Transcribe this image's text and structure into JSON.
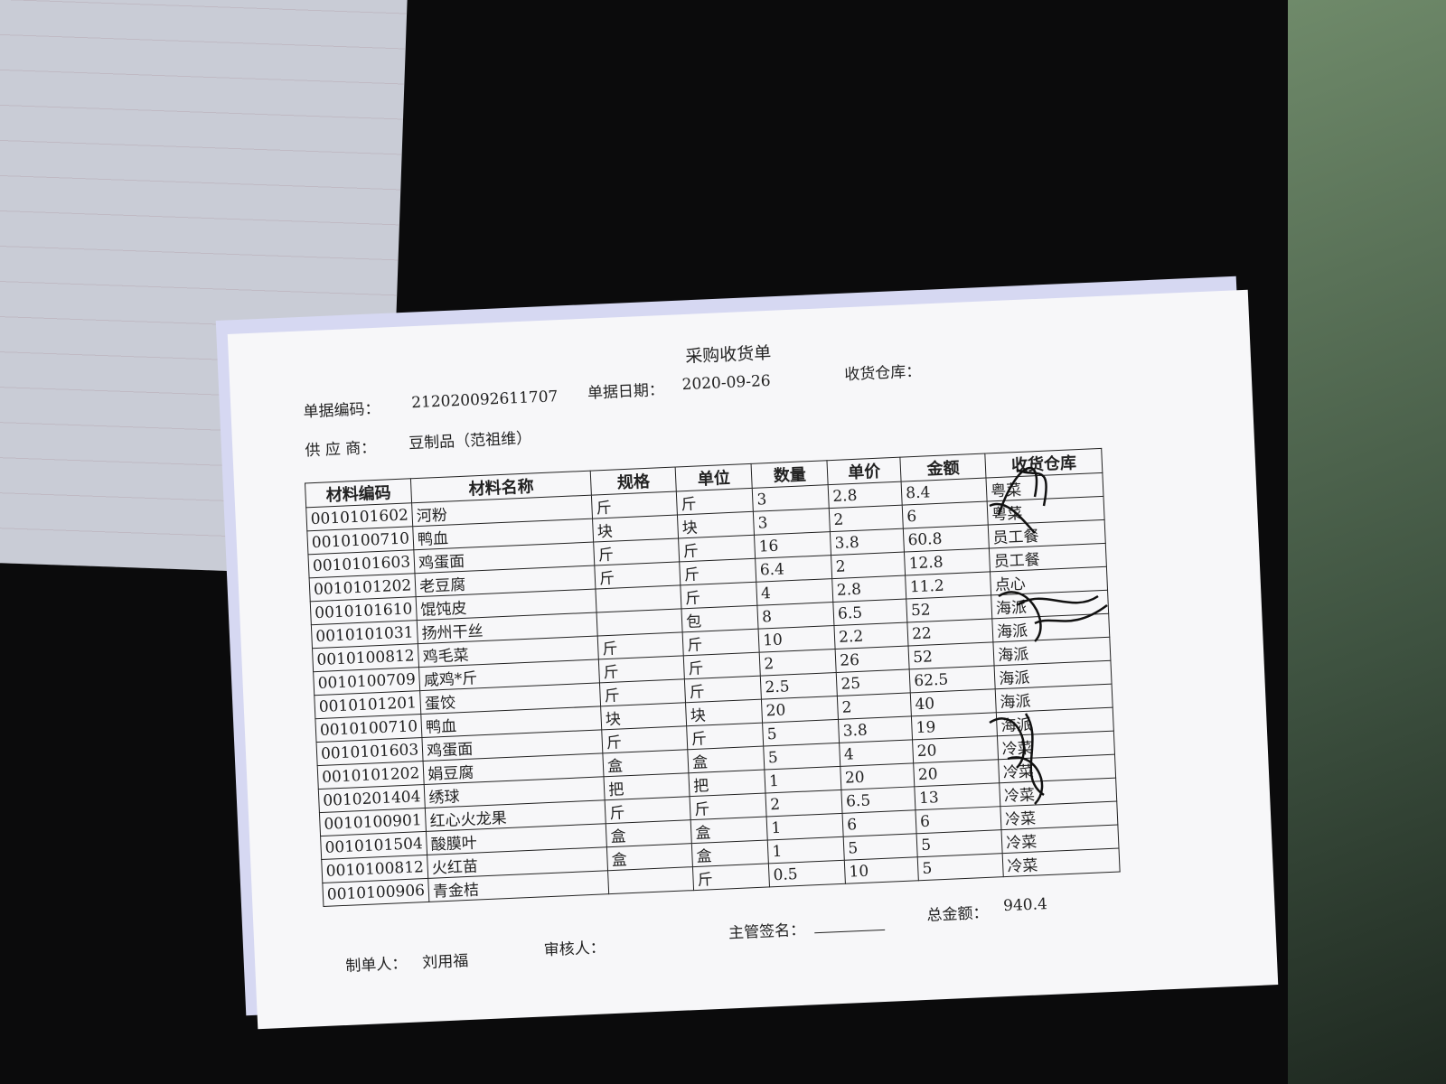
{
  "header": {
    "title": "采购收货单",
    "doc_no_label": "单据编码：",
    "doc_no": "212020092611707",
    "date_label": "单据日期：",
    "date": "2020-09-26",
    "warehouse_label": "收货仓库：",
    "supplier_label": "供 应 商：",
    "supplier": "豆制品（范祖维）"
  },
  "table": {
    "columns": [
      "材料编码",
      "材料名称",
      "规格",
      "单位",
      "数量",
      "单价",
      "金额",
      "收货仓库"
    ],
    "rows": [
      [
        "0010101602",
        "河粉",
        "斤",
        "斤",
        "3",
        "2.8",
        "8.4",
        "粤菜"
      ],
      [
        "0010100710",
        "鸭血",
        "块",
        "块",
        "3",
        "2",
        "6",
        "粤菜"
      ],
      [
        "0010101603",
        "鸡蛋面",
        "斤",
        "斤",
        "16",
        "3.8",
        "60.8",
        "员工餐"
      ],
      [
        "0010101202",
        "老豆腐",
        "斤",
        "斤",
        "6.4",
        "2",
        "12.8",
        "员工餐"
      ],
      [
        "0010101610",
        "馄饨皮",
        null,
        "斤",
        "4",
        "2.8",
        "11.2",
        "点心"
      ],
      [
        "0010101031",
        "扬州干丝",
        null,
        "包",
        "8",
        "6.5",
        "52",
        "海派"
      ],
      [
        "0010100812",
        "鸡毛菜",
        "斤",
        "斤",
        "10",
        "2.2",
        "22",
        "海派"
      ],
      [
        "0010100709",
        "咸鸡*斤",
        "斤",
        "斤",
        "2",
        "26",
        "52",
        "海派"
      ],
      [
        "0010101201",
        "蛋饺",
        "斤",
        "斤",
        "2.5",
        "25",
        "62.5",
        "海派"
      ],
      [
        "0010100710",
        "鸭血",
        "块",
        "块",
        "20",
        "2",
        "40",
        "海派"
      ],
      [
        "0010101603",
        "鸡蛋面",
        "斤",
        "斤",
        "5",
        "3.8",
        "19",
        "海派"
      ],
      [
        "0010101202",
        "娟豆腐",
        "盒",
        "盒",
        "5",
        "4",
        "20",
        "冷菜"
      ],
      [
        "0010201404",
        "绣球",
        "把",
        "把",
        "1",
        "20",
        "20",
        "冷菜"
      ],
      [
        "0010100901",
        "红心火龙果",
        "斤",
        "斤",
        "2",
        "6.5",
        "13",
        "冷菜"
      ],
      [
        "0010101504",
        "酸膜叶",
        "盒",
        "盒",
        "1",
        "6",
        "6",
        "冷菜"
      ],
      [
        "0010100812",
        "火红苗",
        "盒",
        "盒",
        "1",
        "5",
        "5",
        "冷菜"
      ],
      [
        "0010100906",
        "青金桔",
        null,
        "斤",
        "0.5",
        "10",
        "5",
        "冷菜"
      ]
    ]
  },
  "footer": {
    "maker_label": "制单人：",
    "maker": "刘用福",
    "reviewer_label": "审核人：",
    "supervisor_label": "主管签名：",
    "total_label": "总金额：",
    "total": "940.4"
  }
}
